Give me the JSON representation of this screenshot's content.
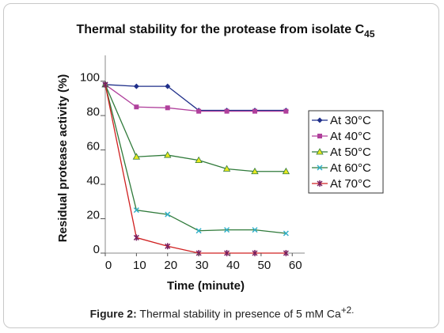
{
  "chart_data": {
    "type": "line",
    "title": "Thermal stability for the protease from isolate C",
    "title_subscript": "45",
    "x_label": "Time (minute)",
    "y_label": "Residual protease activity (%)",
    "x": [
      0,
      10,
      20,
      30,
      39,
      48,
      58
    ],
    "series": [
      {
        "name": "At 30°C",
        "color": "#1f2f8a",
        "marker_color": "#1f2f8a",
        "marker": "diamond",
        "values": [
          98,
          97,
          97,
          83,
          83,
          83,
          83
        ]
      },
      {
        "name": "At 40°C",
        "color": "#b0409c",
        "marker_color": "#b0409c",
        "marker": "square",
        "values": [
          98,
          85,
          84.5,
          82.5,
          82.5,
          82.5,
          82.5
        ]
      },
      {
        "name": "At 50°C",
        "color": "#2f7a3a",
        "marker_color": "#e8e820",
        "marker": "triangle",
        "values": [
          98,
          56,
          57,
          54,
          49,
          47.5,
          47.5
        ]
      },
      {
        "name": "At 60°C",
        "color": "#2f7a3a",
        "marker_color": "#30b0c8",
        "marker": "x",
        "values": [
          98,
          25,
          22.5,
          13,
          13.5,
          13.5,
          11.5
        ]
      },
      {
        "name": "At 70°C",
        "color": "#d02020",
        "marker_color": "#7a2060",
        "marker": "star",
        "values": [
          98,
          9,
          4,
          0,
          0,
          0,
          0
        ]
      }
    ],
    "xlim": [
      0,
      64
    ],
    "xticks": [
      0,
      10,
      20,
      30,
      40,
      50,
      60
    ],
    "ylim": [
      0,
      115
    ],
    "yticks": [
      0,
      20,
      40,
      60,
      80,
      100
    ]
  },
  "caption": {
    "label": "Figure 2:",
    "text": "Thermal stability in presence of 5 mM Ca",
    "superscript": "+2."
  }
}
